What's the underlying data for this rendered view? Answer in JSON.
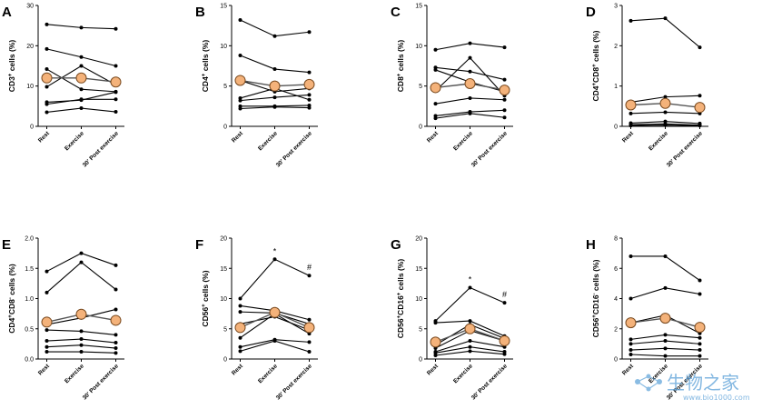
{
  "watermark": {
    "brand": "生物之家",
    "site": "www.bio1000.com"
  },
  "chart_data": [
    {
      "letter": "A",
      "type": "line",
      "ylabel_parts": [
        [
          "CD3",
          ""
        ],
        [
          "+",
          "sup"
        ],
        [
          " cells (%)",
          ""
        ]
      ],
      "categories": [
        "Rest",
        "Exercise",
        "30' Post exercise"
      ],
      "yticks": [
        "0",
        "10",
        "20",
        "30"
      ],
      "ylim": [
        0,
        30
      ],
      "series": [
        {
          "values": [
            25.3,
            24.5,
            24.2
          ]
        },
        {
          "values": [
            19.2,
            17.2,
            15.0
          ]
        },
        {
          "values": [
            14.2,
            9.2,
            8.6
          ]
        },
        {
          "values": [
            9.8,
            15.0,
            10.3
          ]
        },
        {
          "values": [
            6.0,
            6.5,
            8.5
          ]
        },
        {
          "values": [
            5.5,
            6.7,
            6.7
          ]
        },
        {
          "values": [
            3.5,
            4.5,
            3.6
          ]
        }
      ],
      "mean": [
        12.0,
        12.0,
        11.0
      ],
      "sig": [
        "",
        "",
        ""
      ]
    },
    {
      "letter": "B",
      "type": "line",
      "ylabel_parts": [
        [
          "CD4",
          ""
        ],
        [
          "+",
          "sup"
        ],
        [
          " cells (%)",
          ""
        ]
      ],
      "categories": [
        "Rest",
        "Exercise",
        "30' Post exercise"
      ],
      "yticks": [
        "0",
        "5",
        "10",
        "15"
      ],
      "ylim": [
        0,
        15
      ],
      "series": [
        {
          "values": [
            13.2,
            11.2,
            11.7
          ]
        },
        {
          "values": [
            8.8,
            7.1,
            6.7
          ]
        },
        {
          "values": [
            5.7,
            4.3,
            4.7
          ]
        },
        {
          "values": [
            3.5,
            4.7,
            3.3
          ]
        },
        {
          "values": [
            3.2,
            3.6,
            3.9
          ]
        },
        {
          "values": [
            2.5,
            2.5,
            2.6
          ]
        },
        {
          "values": [
            2.2,
            2.4,
            2.3
          ]
        }
      ],
      "mean": [
        5.7,
        5.0,
        5.2
      ],
      "sig": [
        "",
        "",
        ""
      ]
    },
    {
      "letter": "C",
      "type": "line",
      "ylabel_parts": [
        [
          "CD8",
          ""
        ],
        [
          "+",
          "sup"
        ],
        [
          " cells (%)",
          ""
        ]
      ],
      "categories": [
        "Rest",
        "Exercise",
        "30' Post exercise"
      ],
      "yticks": [
        "0",
        "5",
        "10",
        "15"
      ],
      "ylim": [
        0,
        15
      ],
      "series": [
        {
          "values": [
            9.5,
            10.3,
            9.8
          ]
        },
        {
          "values": [
            7.3,
            6.8,
            5.8
          ]
        },
        {
          "values": [
            7.0,
            5.5,
            4.3
          ]
        },
        {
          "values": [
            4.4,
            8.5,
            3.8
          ]
        },
        {
          "values": [
            2.8,
            3.5,
            3.3
          ]
        },
        {
          "values": [
            1.3,
            1.8,
            2.0
          ]
        },
        {
          "values": [
            1.0,
            1.6,
            1.1
          ]
        }
      ],
      "mean": [
        4.8,
        5.3,
        4.5
      ],
      "sig": [
        "",
        "",
        ""
      ]
    },
    {
      "letter": "D",
      "type": "line",
      "ylabel_parts": [
        [
          "CD4",
          ""
        ],
        [
          "+",
          "sup"
        ],
        [
          "CD8",
          ""
        ],
        [
          "+",
          "sup"
        ],
        [
          " cells (%)",
          ""
        ]
      ],
      "categories": [
        "Rest",
        "Exercise",
        "30' Post exercise"
      ],
      "yticks": [
        "0",
        "1",
        "2",
        "3"
      ],
      "ylim": [
        0,
        3
      ],
      "series": [
        {
          "values": [
            2.62,
            2.68,
            1.96
          ]
        },
        {
          "values": [
            0.6,
            0.73,
            0.76
          ]
        },
        {
          "values": [
            0.32,
            0.35,
            0.32
          ]
        },
        {
          "values": [
            0.08,
            0.12,
            0.07
          ]
        },
        {
          "values": [
            0.04,
            0.06,
            0.03
          ]
        },
        {
          "values": [
            0.02,
            0.03,
            0.02
          ]
        }
      ],
      "mean": [
        0.53,
        0.57,
        0.47
      ],
      "sig": [
        "",
        "",
        ""
      ]
    },
    {
      "letter": "E",
      "type": "line",
      "ylabel_parts": [
        [
          "CD4",
          ""
        ],
        [
          "+",
          "sup"
        ],
        [
          "CD8",
          ""
        ],
        [
          "-",
          "sup"
        ],
        [
          " cells (%)",
          ""
        ]
      ],
      "categories": [
        "Rest",
        "Exercise",
        "30' Post exercise"
      ],
      "yticks": [
        "0.0",
        "0.5",
        "1.0",
        "1.5",
        "2.0"
      ],
      "ylim": [
        0,
        2
      ],
      "series": [
        {
          "values": [
            1.45,
            1.75,
            1.55
          ]
        },
        {
          "values": [
            1.1,
            1.6,
            1.15
          ]
        },
        {
          "values": [
            0.57,
            0.68,
            0.82
          ]
        },
        {
          "values": [
            0.48,
            0.46,
            0.4
          ]
        },
        {
          "values": [
            0.3,
            0.33,
            0.27
          ]
        },
        {
          "values": [
            0.2,
            0.23,
            0.18
          ]
        },
        {
          "values": [
            0.12,
            0.12,
            0.1
          ]
        }
      ],
      "mean": [
        0.61,
        0.74,
        0.64
      ],
      "sig": [
        "",
        "",
        ""
      ]
    },
    {
      "letter": "F",
      "type": "line",
      "ylabel_parts": [
        [
          "CD56",
          ""
        ],
        [
          "+",
          "sup"
        ],
        [
          " cells (%)",
          ""
        ]
      ],
      "categories": [
        "Rest",
        "Exercise",
        "30' Post exercise"
      ],
      "yticks": [
        "0",
        "5",
        "10",
        "15",
        "20"
      ],
      "ylim": [
        0,
        20
      ],
      "series": [
        {
          "values": [
            10.0,
            16.5,
            13.8
          ]
        },
        {
          "values": [
            8.8,
            8.0,
            6.5
          ]
        },
        {
          "values": [
            7.8,
            7.6,
            5.8
          ]
        },
        {
          "values": [
            5.8,
            7.0,
            4.8
          ]
        },
        {
          "values": [
            3.5,
            7.5,
            4.2
          ]
        },
        {
          "values": [
            2.0,
            3.2,
            2.8
          ]
        },
        {
          "values": [
            1.3,
            3.0,
            1.2
          ]
        }
      ],
      "mean": [
        5.2,
        7.7,
        5.2
      ],
      "sig": [
        "",
        "*",
        "#"
      ]
    },
    {
      "letter": "G",
      "type": "line",
      "ylabel_parts": [
        [
          "CD56",
          ""
        ],
        [
          "+",
          "sup"
        ],
        [
          "CD16",
          ""
        ],
        [
          "+",
          "sup"
        ],
        [
          " cells (%)",
          ""
        ]
      ],
      "categories": [
        "Rest",
        "Exercise",
        "30' Post exercise"
      ],
      "yticks": [
        "0",
        "5",
        "10",
        "15",
        "20"
      ],
      "ylim": [
        0,
        20
      ],
      "series": [
        {
          "values": [
            6.3,
            11.8,
            9.3
          ]
        },
        {
          "values": [
            6.0,
            6.3,
            3.8
          ]
        },
        {
          "values": [
            2.3,
            5.7,
            3.4
          ]
        },
        {
          "values": [
            1.8,
            4.7,
            3.0
          ]
        },
        {
          "values": [
            1.2,
            3.0,
            2.0
          ]
        },
        {
          "values": [
            1.0,
            2.0,
            1.2
          ]
        },
        {
          "values": [
            0.6,
            1.3,
            0.8
          ]
        }
      ],
      "mean": [
        2.8,
        5.0,
        3.0
      ],
      "sig": [
        "",
        "*",
        "#"
      ]
    },
    {
      "letter": "H",
      "type": "line",
      "ylabel_parts": [
        [
          "CD56",
          ""
        ],
        [
          "+",
          "sup"
        ],
        [
          "CD16",
          ""
        ],
        [
          "-",
          "sup"
        ],
        [
          " cells (%)",
          ""
        ]
      ],
      "categories": [
        "Rest",
        "Exercise",
        "30' Post exercise"
      ],
      "yticks": [
        "0",
        "2",
        "4",
        "6",
        "8"
      ],
      "ylim": [
        0,
        8
      ],
      "series": [
        {
          "values": [
            6.8,
            6.8,
            5.2
          ]
        },
        {
          "values": [
            4.0,
            4.7,
            4.3
          ]
        },
        {
          "values": [
            2.4,
            2.9,
            1.7
          ]
        },
        {
          "values": [
            1.3,
            1.6,
            1.4
          ]
        },
        {
          "values": [
            1.0,
            1.2,
            1.0
          ]
        },
        {
          "values": [
            0.6,
            0.7,
            0.6
          ]
        },
        {
          "values": [
            0.3,
            0.2,
            0.2
          ]
        }
      ],
      "mean": [
        2.4,
        2.7,
        2.1
      ],
      "sig": [
        "",
        "",
        ""
      ]
    }
  ]
}
